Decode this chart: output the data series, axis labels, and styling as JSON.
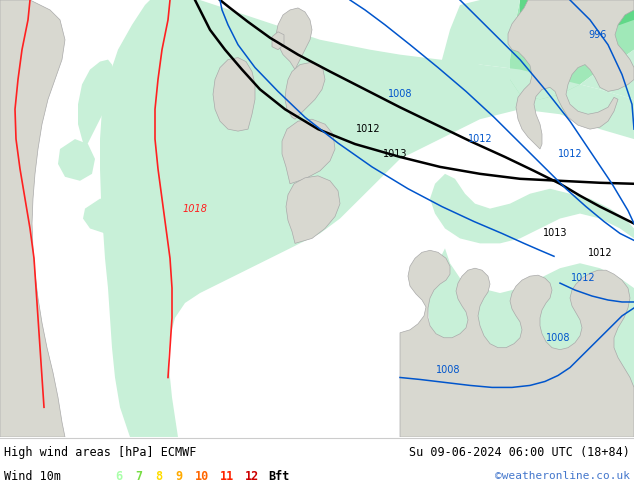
{
  "title_left": "High wind areas [hPa] ECMWF",
  "title_right": "Su 09-06-2024 06:00 UTC (18+84)",
  "subtitle_left": "Wind 10m",
  "subtitle_right": "©weatheronline.co.uk",
  "bft_labels": [
    "6",
    "7",
    "8",
    "9",
    "10",
    "11",
    "12",
    "Bft"
  ],
  "bft_colors": [
    "#aaffaa",
    "#77dd44",
    "#ffdd00",
    "#ffaa00",
    "#ff6600",
    "#ff2200",
    "#cc0000",
    "#000000"
  ],
  "sea_color": "#e8e8e8",
  "land_color": "#d8d8d0",
  "land_edge_color": "#aaaaaa",
  "green_light": "#c8f0d8",
  "green_mid": "#a0e8b8",
  "green_bright": "#60d888",
  "isobar_red": "#ff2020",
  "isobar_black": "#000000",
  "isobar_blue": "#0055cc",
  "footer_bg": "#ffffff",
  "figsize": [
    6.34,
    4.9
  ],
  "dpi": 100
}
